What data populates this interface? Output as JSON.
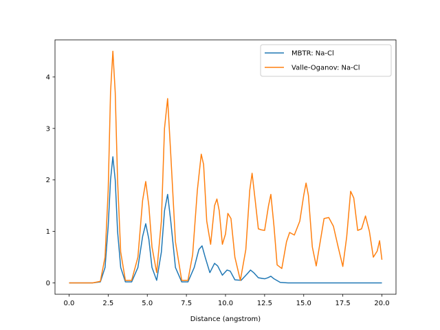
{
  "chart_data": {
    "type": "line",
    "title": "",
    "xlabel": "Distance (angstrom)",
    "ylabel": "",
    "xlim": [
      -0.9,
      20.9
    ],
    "ylim": [
      -0.22,
      4.72
    ],
    "xticks": [
      0.0,
      2.5,
      5.0,
      7.5,
      10.0,
      12.5,
      15.0,
      17.5,
      20.0
    ],
    "xtick_labels": [
      "0.0",
      "2.5",
      "5.0",
      "7.5",
      "10.0",
      "12.5",
      "15.0",
      "17.5",
      "20.0"
    ],
    "yticks": [
      0,
      1,
      2,
      3,
      4
    ],
    "ytick_labels": [
      "0",
      "1",
      "2",
      "3",
      "4"
    ],
    "grid": false,
    "legend_position": "top-right",
    "series": [
      {
        "name": "MBTR: Na-Cl",
        "color": "#1f77b4",
        "x": [
          0,
          1.5,
          2.0,
          2.3,
          2.5,
          2.65,
          2.8,
          2.95,
          3.1,
          3.3,
          3.6,
          4.0,
          4.4,
          4.7,
          4.9,
          5.1,
          5.3,
          5.6,
          5.9,
          6.1,
          6.3,
          6.5,
          6.8,
          7.2,
          7.6,
          8.0,
          8.3,
          8.5,
          8.7,
          9.0,
          9.3,
          9.5,
          9.8,
          10.1,
          10.3,
          10.6,
          11.0,
          11.4,
          11.6,
          11.8,
          12.1,
          12.5,
          12.7,
          12.9,
          13.1,
          13.5,
          14.0,
          15.0,
          17.5,
          20.0
        ],
        "y": [
          0,
          0,
          0.02,
          0.3,
          1.1,
          2.0,
          2.45,
          2.0,
          1.0,
          0.3,
          0.02,
          0.02,
          0.3,
          0.9,
          1.15,
          0.85,
          0.3,
          0.05,
          0.6,
          1.4,
          1.72,
          1.2,
          0.3,
          0.02,
          0.02,
          0.3,
          0.65,
          0.72,
          0.5,
          0.2,
          0.38,
          0.33,
          0.15,
          0.25,
          0.23,
          0.06,
          0.05,
          0.18,
          0.25,
          0.2,
          0.1,
          0.08,
          0.1,
          0.13,
          0.08,
          0.01,
          0,
          0,
          0,
          0
        ]
      },
      {
        "name": "Valle-Oganov: Na-Cl",
        "color": "#ff7f0e",
        "x": [
          0,
          1.5,
          2.0,
          2.3,
          2.5,
          2.65,
          2.8,
          2.95,
          3.1,
          3.3,
          3.6,
          4.0,
          4.4,
          4.7,
          4.9,
          5.1,
          5.3,
          5.6,
          5.9,
          6.1,
          6.3,
          6.5,
          6.8,
          7.2,
          7.6,
          7.9,
          8.2,
          8.45,
          8.6,
          8.8,
          9.05,
          9.3,
          9.45,
          9.6,
          9.8,
          10.0,
          10.15,
          10.35,
          10.6,
          10.95,
          11.3,
          11.55,
          11.7,
          11.9,
          12.1,
          12.3,
          12.5,
          12.75,
          12.9,
          13.1,
          13.3,
          13.6,
          13.9,
          14.1,
          14.4,
          14.75,
          15.0,
          15.15,
          15.3,
          15.55,
          15.8,
          16.0,
          16.3,
          16.6,
          16.9,
          17.2,
          17.5,
          17.75,
          18.0,
          18.2,
          18.45,
          18.7,
          18.95,
          19.2,
          19.45,
          19.7,
          19.85,
          20.0
        ],
        "y": [
          0,
          0,
          0.03,
          0.5,
          1.8,
          3.7,
          4.5,
          3.7,
          2.0,
          0.6,
          0.05,
          0.05,
          0.5,
          1.6,
          1.97,
          1.5,
          0.7,
          0.2,
          1.2,
          3.0,
          3.58,
          2.5,
          0.8,
          0.05,
          0.05,
          0.55,
          1.8,
          2.5,
          2.3,
          1.2,
          0.75,
          1.5,
          1.63,
          1.4,
          0.75,
          0.95,
          1.35,
          1.25,
          0.5,
          0.05,
          0.65,
          1.8,
          2.13,
          1.6,
          1.05,
          1.03,
          1.02,
          1.5,
          1.72,
          1.1,
          0.35,
          0.28,
          0.8,
          0.98,
          0.93,
          1.2,
          1.7,
          1.94,
          1.7,
          0.7,
          0.33,
          0.7,
          1.25,
          1.27,
          1.1,
          0.7,
          0.32,
          0.9,
          1.78,
          1.65,
          1.02,
          1.05,
          1.3,
          1.0,
          0.5,
          0.62,
          0.82,
          0.45
        ]
      }
    ]
  }
}
